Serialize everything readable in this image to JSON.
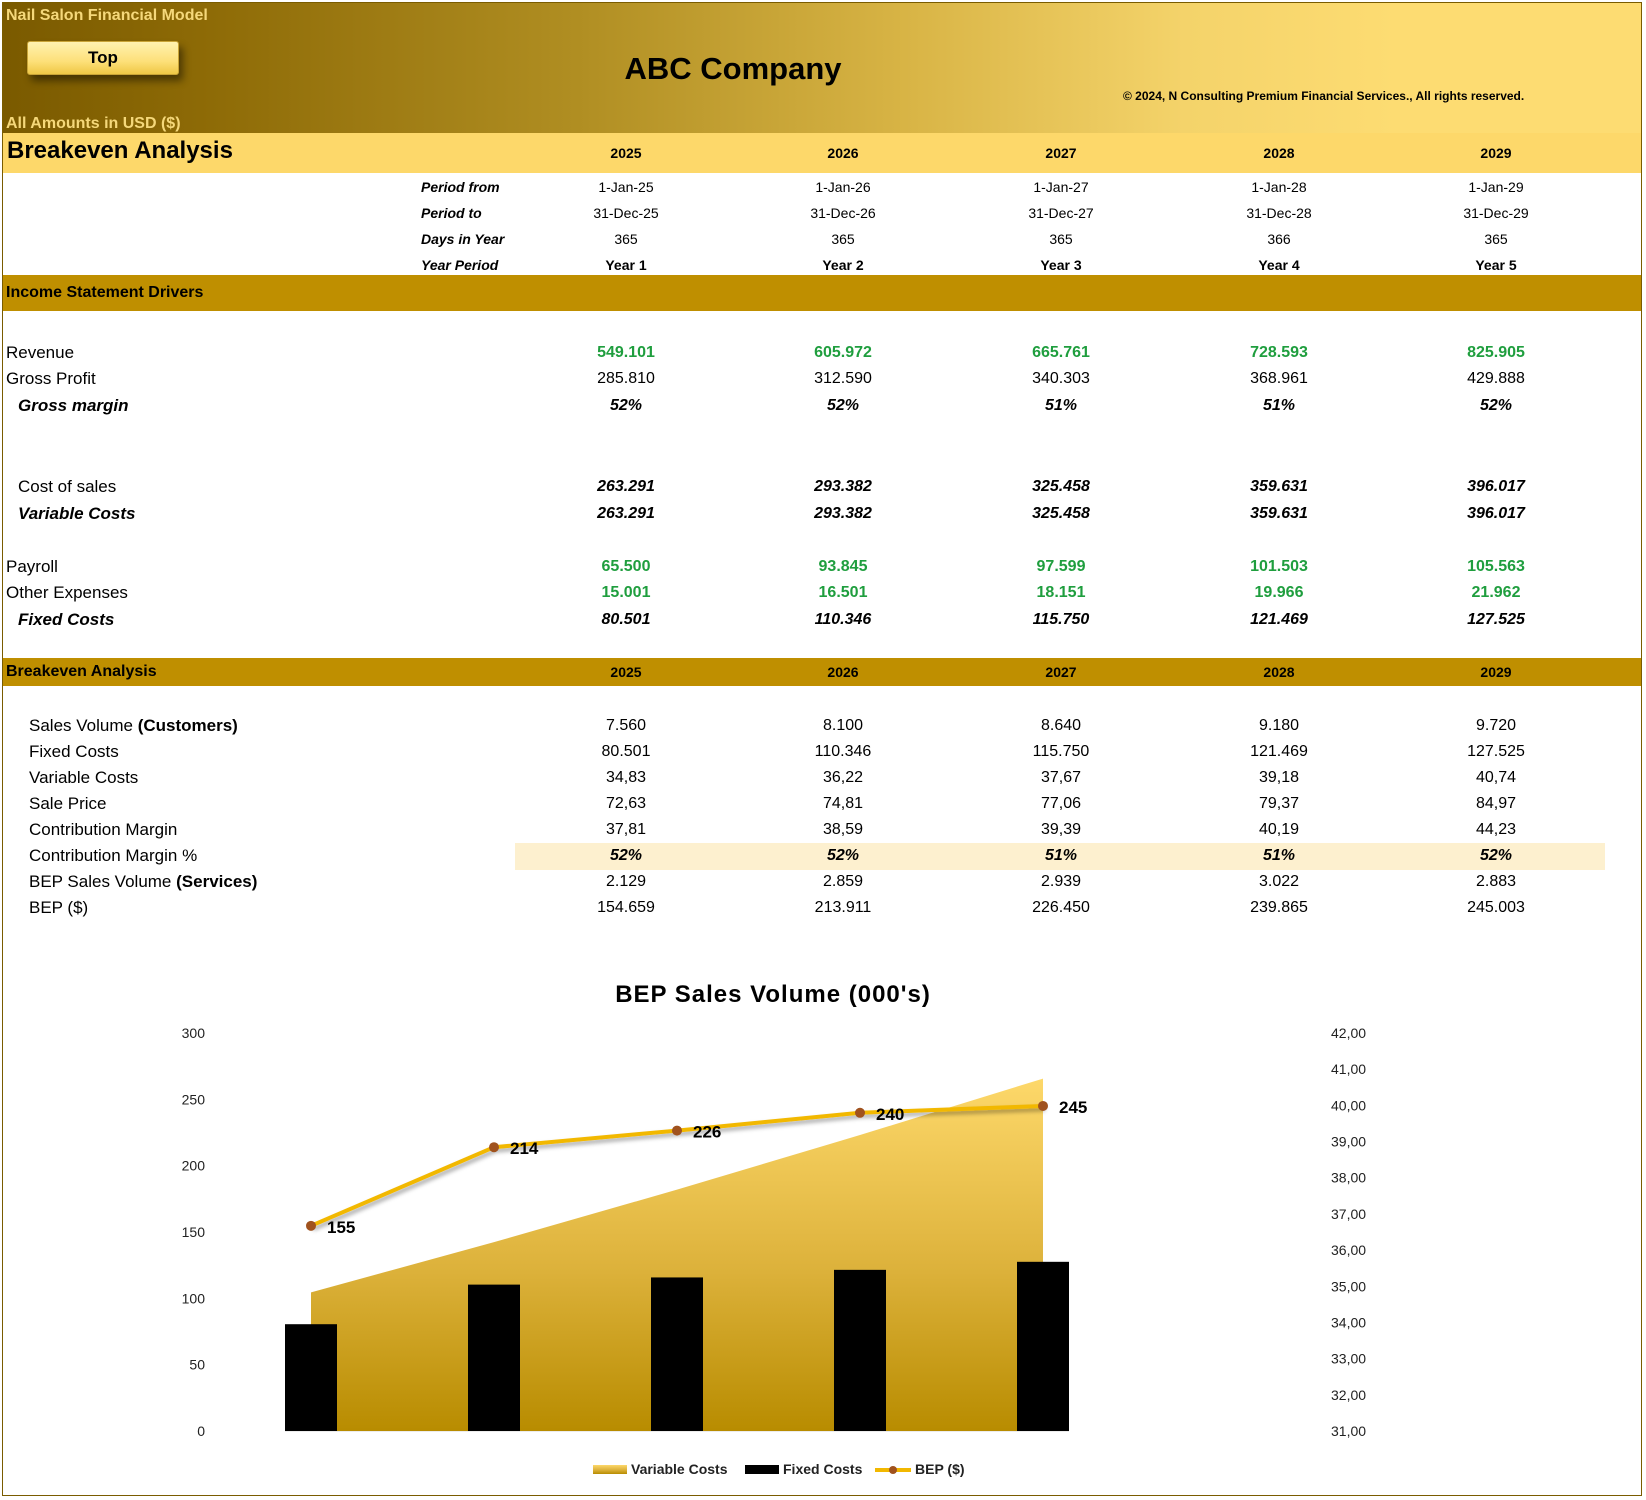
{
  "header": {
    "model_title": "Nail Salon Financial Model",
    "top_button": "Top",
    "company": "ABC Company",
    "copyright": "© 2024, N Consulting Premium Financial Services., All rights reserved.",
    "amounts": "All Amounts in  USD ($)"
  },
  "page_title": "Breakeven Analysis",
  "years": [
    "2025",
    "2026",
    "2027",
    "2028",
    "2029"
  ],
  "meta": [
    {
      "label": "Period from",
      "values": [
        "1-Jan-25",
        "1-Jan-26",
        "1-Jan-27",
        "1-Jan-28",
        "1-Jan-29"
      ]
    },
    {
      "label": "Period to",
      "values": [
        "31-Dec-25",
        "31-Dec-26",
        "31-Dec-27",
        "31-Dec-28",
        "31-Dec-29"
      ]
    },
    {
      "label": "Days in Year",
      "values": [
        "365",
        "365",
        "365",
        "366",
        "365"
      ]
    },
    {
      "label": "Year Period",
      "values": [
        "Year 1",
        "Year 2",
        "Year 3",
        "Year 4",
        "Year 5"
      ]
    }
  ],
  "income_section": {
    "title": "Income Statement Drivers",
    "rows": [
      {
        "label": "Revenue",
        "values": [
          "549.101",
          "605.972",
          "665.761",
          "728.593",
          "825.905"
        ]
      },
      {
        "label": "Gross Profit",
        "values": [
          "285.810",
          "312.590",
          "340.303",
          "368.961",
          "429.888"
        ]
      },
      {
        "label": "Gross margin",
        "values": [
          "52%",
          "52%",
          "51%",
          "51%",
          "52%"
        ]
      },
      {
        "label": "Cost of sales",
        "values": [
          "263.291",
          "293.382",
          "325.458",
          "359.631",
          "396.017"
        ]
      },
      {
        "label": "Variable Costs",
        "values": [
          "263.291",
          "293.382",
          "325.458",
          "359.631",
          "396.017"
        ]
      },
      {
        "label": "Payroll",
        "values": [
          "65.500",
          "93.845",
          "97.599",
          "101.503",
          "105.563"
        ]
      },
      {
        "label": "Other Expenses",
        "values": [
          "15.001",
          "16.501",
          "18.151",
          "19.966",
          "21.962"
        ]
      },
      {
        "label": "Fixed Costs",
        "values": [
          "80.501",
          "110.346",
          "115.750",
          "121.469",
          "127.525"
        ]
      }
    ]
  },
  "breakeven_section": {
    "title": "Breakeven Analysis",
    "rows": [
      {
        "label": "Sales Volume",
        "suffix": "(Customers)",
        "values": [
          "7.560",
          "8.100",
          "8.640",
          "9.180",
          "9.720"
        ]
      },
      {
        "label": "Fixed Costs",
        "suffix": "",
        "values": [
          "80.501",
          "110.346",
          "115.750",
          "121.469",
          "127.525"
        ]
      },
      {
        "label": "Variable Costs",
        "suffix": "",
        "values": [
          "34,83",
          "36,22",
          "37,67",
          "39,18",
          "40,74"
        ]
      },
      {
        "label": "Sale Price",
        "suffix": "",
        "values": [
          "72,63",
          "74,81",
          "77,06",
          "79,37",
          "84,97"
        ]
      },
      {
        "label": "Contribution Margin",
        "suffix": "",
        "values": [
          "37,81",
          "38,59",
          "39,39",
          "40,19",
          "44,23"
        ]
      },
      {
        "label": "Contribution Margin %",
        "suffix": "",
        "values": [
          "52%",
          "52%",
          "51%",
          "51%",
          "52%"
        ]
      },
      {
        "label": "BEP Sales Volume",
        "suffix": "(Services)",
        "values": [
          "2.129",
          "2.859",
          "2.939",
          "3.022",
          "2.883"
        ]
      },
      {
        "label": "BEP ($)",
        "suffix": "",
        "values": [
          "154.659",
          "213.911",
          "226.450",
          "239.865",
          "245.003"
        ]
      }
    ]
  },
  "colors": {
    "section": "#bf8f00",
    "title_band": "#fdd86a",
    "green_value": "#1f9e3e",
    "line": "#f2b800",
    "marker": "#a0521e"
  },
  "chart_data": {
    "type": "bar",
    "title": "BEP Sales Volume  (000's)",
    "categories": [
      "2025",
      "2026",
      "2027",
      "2028",
      "2029"
    ],
    "ylim": [
      0,
      300
    ],
    "yticks": [
      "0",
      "50",
      "100",
      "150",
      "200",
      "250",
      "300"
    ],
    "y2lim": [
      31,
      42
    ],
    "y2ticks": [
      "31,00",
      "32,00",
      "33,00",
      "34,00",
      "35,00",
      "36,00",
      "37,00",
      "38,00",
      "39,00",
      "40,00",
      "41,00",
      "42,00"
    ],
    "legend_position": "bottom",
    "series": [
      {
        "name": "Variable Costs",
        "type": "area",
        "axis": "secondary",
        "values": [
          34.83,
          36.22,
          37.67,
          39.18,
          40.74
        ]
      },
      {
        "name": "Fixed Costs",
        "type": "bar",
        "axis": "primary",
        "values": [
          80.501,
          110.346,
          115.75,
          121.469,
          127.525
        ]
      },
      {
        "name": "BEP ($)",
        "type": "line",
        "axis": "primary",
        "values": [
          154.659,
          213.911,
          226.45,
          239.865,
          245.003
        ],
        "labels": [
          "155",
          "214",
          "226",
          "240",
          "245"
        ]
      }
    ]
  }
}
